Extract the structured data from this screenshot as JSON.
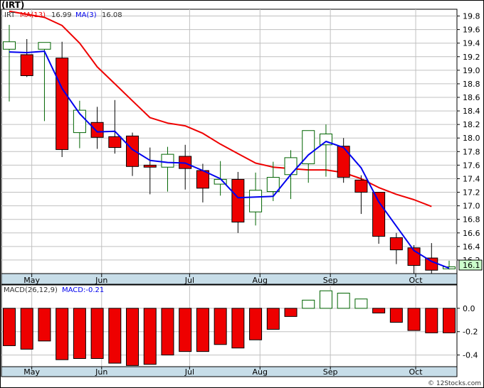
{
  "title": "(IRT)",
  "credit": "© 12Stocks.com",
  "colors": {
    "bull_fill": "#ffffff",
    "bull_edge": "#006400",
    "bear_fill": "#ee0000",
    "bear_edge": "#000000",
    "ma13": "#ee0000",
    "ma3": "#0000ee",
    "axis_band": "#c7dde8",
    "grid": "#c0c0c0",
    "last_price_box": "#ccffcc",
    "macd_pos_fill": "#ffffff",
    "macd_pos_edge": "#006400",
    "macd_neg_fill": "#ee0000",
    "macd_neg_edge": "#000000"
  },
  "price_legend": {
    "ticker": "IRT",
    "ma13_label": "MA(13)",
    "ma13_value": "16.99",
    "ma3_label": "MA(3)",
    "ma3_value": "16.08"
  },
  "macd_legend": {
    "label": "MACD(26,12,9)",
    "value_label": "MACD:-0.21"
  },
  "last_price": "16.1",
  "chart_data": [
    {
      "type": "candlestick",
      "title": "(IRT)",
      "ylim": [
        16.0,
        19.9
      ],
      "yticks": [
        16.2,
        16.4,
        16.6,
        16.8,
        17.0,
        17.2,
        17.4,
        17.6,
        17.8,
        18.0,
        18.2,
        18.4,
        18.6,
        18.8,
        19.0,
        19.2,
        19.4,
        19.6,
        19.8
      ],
      "ytick_labels": [
        "16.2",
        "16.4",
        "16.6",
        "16.8",
        "17.0",
        "17.2",
        "17.4",
        "17.6",
        "17.8",
        "18.0",
        "18.2",
        "18.4",
        "18.6",
        "18.8",
        "19.0",
        "19.2",
        "19.4",
        "19.6",
        "19.8"
      ],
      "months": [
        {
          "label": "May",
          "bar": 1.28
        },
        {
          "label": "Jun",
          "bar": 5.25
        },
        {
          "label": "Jul",
          "bar": 10.25
        },
        {
          "label": "Aug",
          "bar": 14.25
        },
        {
          "label": "Sep",
          "bar": 18.25
        },
        {
          "label": "Oct",
          "bar": 23.1
        }
      ],
      "candles": [
        {
          "o": 19.31,
          "h": 19.67,
          "l": 18.54,
          "c": 19.42
        },
        {
          "o": 19.23,
          "h": 19.46,
          "l": 18.9,
          "c": 18.92
        },
        {
          "o": 19.31,
          "h": 19.41,
          "l": 18.25,
          "c": 19.41
        },
        {
          "o": 19.18,
          "h": 19.42,
          "l": 17.72,
          "c": 17.83
        },
        {
          "o": 18.08,
          "h": 18.55,
          "l": 17.85,
          "c": 18.41
        },
        {
          "o": 18.23,
          "h": 18.46,
          "l": 17.84,
          "c": 18.01
        },
        {
          "o": 18.02,
          "h": 18.56,
          "l": 17.77,
          "c": 17.86
        },
        {
          "o": 18.03,
          "h": 18.08,
          "l": 17.44,
          "c": 17.58
        },
        {
          "o": 17.6,
          "h": 17.86,
          "l": 17.17,
          "c": 17.57
        },
        {
          "o": 17.57,
          "h": 17.87,
          "l": 17.21,
          "c": 17.76
        },
        {
          "o": 17.73,
          "h": 17.9,
          "l": 17.24,
          "c": 17.55
        },
        {
          "o": 17.52,
          "h": 17.62,
          "l": 17.05,
          "c": 17.26
        },
        {
          "o": 17.32,
          "h": 17.66,
          "l": 17.15,
          "c": 17.39
        },
        {
          "o": 17.39,
          "h": 17.5,
          "l": 16.6,
          "c": 16.76
        },
        {
          "o": 16.91,
          "h": 17.49,
          "l": 16.71,
          "c": 17.23
        },
        {
          "o": 17.21,
          "h": 17.65,
          "l": 17.07,
          "c": 17.42
        },
        {
          "o": 17.46,
          "h": 17.82,
          "l": 17.1,
          "c": 17.71
        },
        {
          "o": 17.62,
          "h": 18.11,
          "l": 17.34,
          "c": 18.11
        },
        {
          "o": 17.9,
          "h": 18.2,
          "l": 17.43,
          "c": 18.06
        },
        {
          "o": 17.88,
          "h": 18.0,
          "l": 17.34,
          "c": 17.42
        },
        {
          "o": 17.38,
          "h": 17.45,
          "l": 16.88,
          "c": 17.2
        },
        {
          "o": 17.2,
          "h": 17.2,
          "l": 16.44,
          "c": 16.55
        },
        {
          "o": 16.53,
          "h": 16.6,
          "l": 16.14,
          "c": 16.35
        },
        {
          "o": 16.38,
          "h": 16.42,
          "l": 15.98,
          "c": 16.12
        },
        {
          "o": 16.23,
          "h": 16.45,
          "l": 15.98,
          "c": 16.05
        },
        {
          "o": 16.07,
          "h": 16.19,
          "l": 16.06,
          "c": 16.1
        }
      ],
      "ma13": [
        {
          "bar": 0.0,
          "v": 19.87
        },
        {
          "bar": 2.0,
          "v": 19.78
        },
        {
          "bar": 3.0,
          "v": 19.66
        },
        {
          "bar": 4.0,
          "v": 19.4
        },
        {
          "bar": 5.0,
          "v": 19.05
        },
        {
          "bar": 6.0,
          "v": 18.8
        },
        {
          "bar": 7.0,
          "v": 18.55
        },
        {
          "bar": 8.0,
          "v": 18.3
        },
        {
          "bar": 9.0,
          "v": 18.22
        },
        {
          "bar": 10.0,
          "v": 18.18
        },
        {
          "bar": 11.0,
          "v": 18.07
        },
        {
          "bar": 12.0,
          "v": 17.91
        },
        {
          "bar": 13.0,
          "v": 17.77
        },
        {
          "bar": 14.0,
          "v": 17.63
        },
        {
          "bar": 15.0,
          "v": 17.57
        },
        {
          "bar": 16.0,
          "v": 17.55
        },
        {
          "bar": 17.0,
          "v": 17.53
        },
        {
          "bar": 18.0,
          "v": 17.53
        },
        {
          "bar": 19.0,
          "v": 17.49
        },
        {
          "bar": 20.0,
          "v": 17.4
        },
        {
          "bar": 21.0,
          "v": 17.27
        },
        {
          "bar": 22.0,
          "v": 17.17
        },
        {
          "bar": 23.0,
          "v": 17.09
        },
        {
          "bar": 24.0,
          "v": 16.99
        }
      ],
      "ma3": [
        {
          "bar": 0.0,
          "v": 19.27
        },
        {
          "bar": 1.0,
          "v": 19.26
        },
        {
          "bar": 2.0,
          "v": 19.28
        },
        {
          "bar": 3.0,
          "v": 18.73
        },
        {
          "bar": 4.0,
          "v": 18.36
        },
        {
          "bar": 5.0,
          "v": 18.09
        },
        {
          "bar": 6.0,
          "v": 18.1
        },
        {
          "bar": 7.0,
          "v": 17.83
        },
        {
          "bar": 8.0,
          "v": 17.67
        },
        {
          "bar": 9.0,
          "v": 17.64
        },
        {
          "bar": 10.0,
          "v": 17.63
        },
        {
          "bar": 11.0,
          "v": 17.52
        },
        {
          "bar": 12.0,
          "v": 17.4
        },
        {
          "bar": 13.0,
          "v": 17.12
        },
        {
          "bar": 14.0,
          "v": 17.13
        },
        {
          "bar": 15.0,
          "v": 17.14
        },
        {
          "bar": 16.0,
          "v": 17.46
        },
        {
          "bar": 17.0,
          "v": 17.75
        },
        {
          "bar": 18.0,
          "v": 17.95
        },
        {
          "bar": 19.0,
          "v": 17.86
        },
        {
          "bar": 20.0,
          "v": 17.56
        },
        {
          "bar": 21.0,
          "v": 17.06
        },
        {
          "bar": 22.0,
          "v": 16.7
        },
        {
          "bar": 23.0,
          "v": 16.34
        },
        {
          "bar": 24.0,
          "v": 16.18
        },
        {
          "bar": 25.0,
          "v": 16.08
        }
      ]
    },
    {
      "type": "bar",
      "title": "MACD(26,12,9)",
      "ylim": [
        -0.5,
        0.2
      ],
      "yticks": [
        0.0,
        -0.2,
        -0.4
      ],
      "ytick_labels": [
        "0.0",
        "-0.2",
        "-0.4"
      ],
      "values": [
        -0.32,
        -0.35,
        -0.28,
        -0.44,
        -0.43,
        -0.43,
        -0.47,
        -0.49,
        -0.48,
        -0.4,
        -0.37,
        -0.37,
        -0.31,
        -0.34,
        -0.27,
        -0.18,
        -0.07,
        0.07,
        0.15,
        0.13,
        0.08,
        -0.04,
        -0.12,
        -0.19,
        -0.21,
        -0.21
      ]
    }
  ]
}
